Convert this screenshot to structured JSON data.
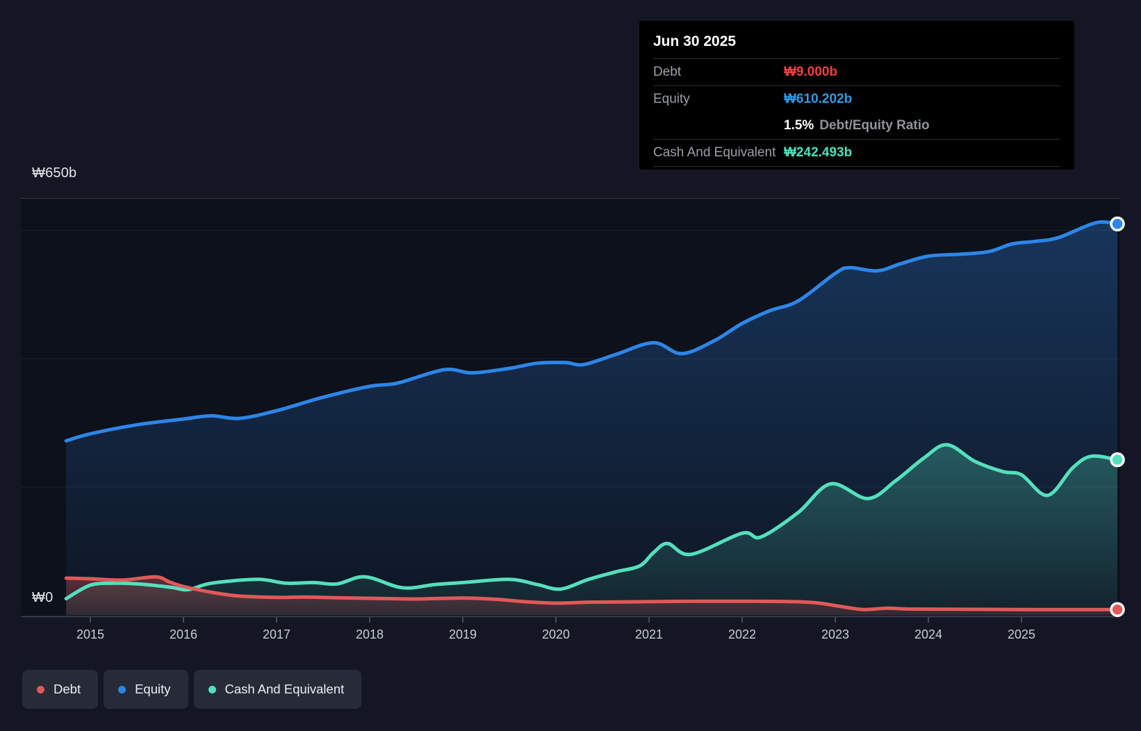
{
  "tooltip": {
    "date": "Jun 30 2025",
    "rows": [
      {
        "label": "Debt",
        "value": "₩9.000b",
        "color": "#ef4040"
      },
      {
        "label": "Equity",
        "value": "₩610.202b",
        "color": "#2e9be6"
      },
      {
        "label": "Cash And Equivalent",
        "value": "₩242.493b",
        "color": "#47e2bf"
      }
    ],
    "ratio": {
      "value": "1.5%",
      "label": "Debt/Equity Ratio"
    }
  },
  "axis": {
    "y_top_label": "₩650b",
    "y_zero_label": "₩0",
    "years": [
      "2015",
      "2016",
      "2017",
      "2018",
      "2019",
      "2020",
      "2021",
      "2022",
      "2023",
      "2024",
      "2025"
    ]
  },
  "legend": [
    {
      "label": "Debt",
      "color": "#e25858"
    },
    {
      "label": "Equity",
      "color": "#2d86e8"
    },
    {
      "label": "Cash And Equivalent",
      "color": "#54e0bd"
    }
  ],
  "chart_data": {
    "type": "area",
    "x_unit": "year",
    "x_range": [
      2014.74,
      2026.03
    ],
    "ylim": [
      0,
      650
    ],
    "y_gridlines": [
      200,
      400,
      600
    ],
    "y_top_gridline": 650,
    "x_ticks": [
      2015,
      2016,
      2017,
      2018,
      2019,
      2020,
      2021,
      2022,
      2023,
      2024,
      2025
    ],
    "grid": true,
    "legend_position": "bottom-left",
    "series": [
      {
        "name": "Equity",
        "color": "#2d86e8",
        "points": [
          [
            2014.74,
            272
          ],
          [
            2015.0,
            283
          ],
          [
            2015.5,
            297
          ],
          [
            2016.0,
            306
          ],
          [
            2016.3,
            311
          ],
          [
            2016.6,
            307
          ],
          [
            2017.0,
            319
          ],
          [
            2017.5,
            340
          ],
          [
            2018.0,
            357
          ],
          [
            2018.3,
            362
          ],
          [
            2018.8,
            383
          ],
          [
            2019.1,
            378
          ],
          [
            2019.5,
            385
          ],
          [
            2019.8,
            393
          ],
          [
            2020.1,
            394
          ],
          [
            2020.3,
            391
          ],
          [
            2020.65,
            407
          ],
          [
            2021.05,
            425
          ],
          [
            2021.35,
            408
          ],
          [
            2021.7,
            428
          ],
          [
            2022.0,
            455
          ],
          [
            2022.3,
            475
          ],
          [
            2022.6,
            490
          ],
          [
            2023.0,
            533
          ],
          [
            2023.15,
            542
          ],
          [
            2023.45,
            537
          ],
          [
            2023.7,
            548
          ],
          [
            2024.0,
            560
          ],
          [
            2024.35,
            563
          ],
          [
            2024.65,
            567
          ],
          [
            2024.9,
            579
          ],
          [
            2025.15,
            583
          ],
          [
            2025.4,
            589
          ],
          [
            2025.8,
            612
          ],
          [
            2026.03,
            610.2
          ]
        ]
      },
      {
        "name": "Cash And Equivalent",
        "color": "#54e0bd",
        "points": [
          [
            2014.74,
            26
          ],
          [
            2015.0,
            47
          ],
          [
            2015.25,
            50
          ],
          [
            2015.5,
            49
          ],
          [
            2015.85,
            44
          ],
          [
            2016.05,
            40
          ],
          [
            2016.3,
            50
          ],
          [
            2016.8,
            56
          ],
          [
            2017.1,
            50
          ],
          [
            2017.4,
            51
          ],
          [
            2017.65,
            49
          ],
          [
            2017.95,
            60
          ],
          [
            2018.35,
            43
          ],
          [
            2018.7,
            48
          ],
          [
            2019.0,
            51
          ],
          [
            2019.5,
            56
          ],
          [
            2019.8,
            48
          ],
          [
            2020.05,
            41
          ],
          [
            2020.35,
            56
          ],
          [
            2020.65,
            68
          ],
          [
            2020.9,
            77
          ],
          [
            2021.05,
            98
          ],
          [
            2021.2,
            112
          ],
          [
            2021.45,
            95
          ],
          [
            2022.0,
            128
          ],
          [
            2022.2,
            122
          ],
          [
            2022.6,
            160
          ],
          [
            2022.95,
            205
          ],
          [
            2023.35,
            182
          ],
          [
            2023.65,
            210
          ],
          [
            2023.95,
            245
          ],
          [
            2024.2,
            266
          ],
          [
            2024.5,
            240
          ],
          [
            2024.8,
            224
          ],
          [
            2025.0,
            219
          ],
          [
            2025.28,
            187
          ],
          [
            2025.55,
            230
          ],
          [
            2025.75,
            248
          ],
          [
            2026.03,
            242.5
          ]
        ]
      },
      {
        "name": "Debt",
        "color": "#e25858",
        "points": [
          [
            2014.74,
            58
          ],
          [
            2015.0,
            57
          ],
          [
            2015.35,
            55
          ],
          [
            2015.7,
            60
          ],
          [
            2015.85,
            52
          ],
          [
            2016.0,
            45
          ],
          [
            2016.3,
            36
          ],
          [
            2016.6,
            30
          ],
          [
            2017.0,
            28
          ],
          [
            2017.3,
            28.5
          ],
          [
            2017.6,
            27.5
          ],
          [
            2018.0,
            26.5
          ],
          [
            2018.5,
            25.5
          ],
          [
            2019.0,
            27
          ],
          [
            2019.35,
            25
          ],
          [
            2019.65,
            21.5
          ],
          [
            2020.0,
            19
          ],
          [
            2020.35,
            20.5
          ],
          [
            2020.8,
            21
          ],
          [
            2021.3,
            21.8
          ],
          [
            2022.0,
            22
          ],
          [
            2022.5,
            21.5
          ],
          [
            2022.8,
            19.5
          ],
          [
            2023.05,
            14
          ],
          [
            2023.3,
            9
          ],
          [
            2023.55,
            11
          ],
          [
            2023.8,
            9.8
          ],
          [
            2024.2,
            9.5
          ],
          [
            2024.7,
            9.2
          ],
          [
            2025.2,
            9
          ],
          [
            2026.03,
            9
          ]
        ]
      }
    ]
  }
}
